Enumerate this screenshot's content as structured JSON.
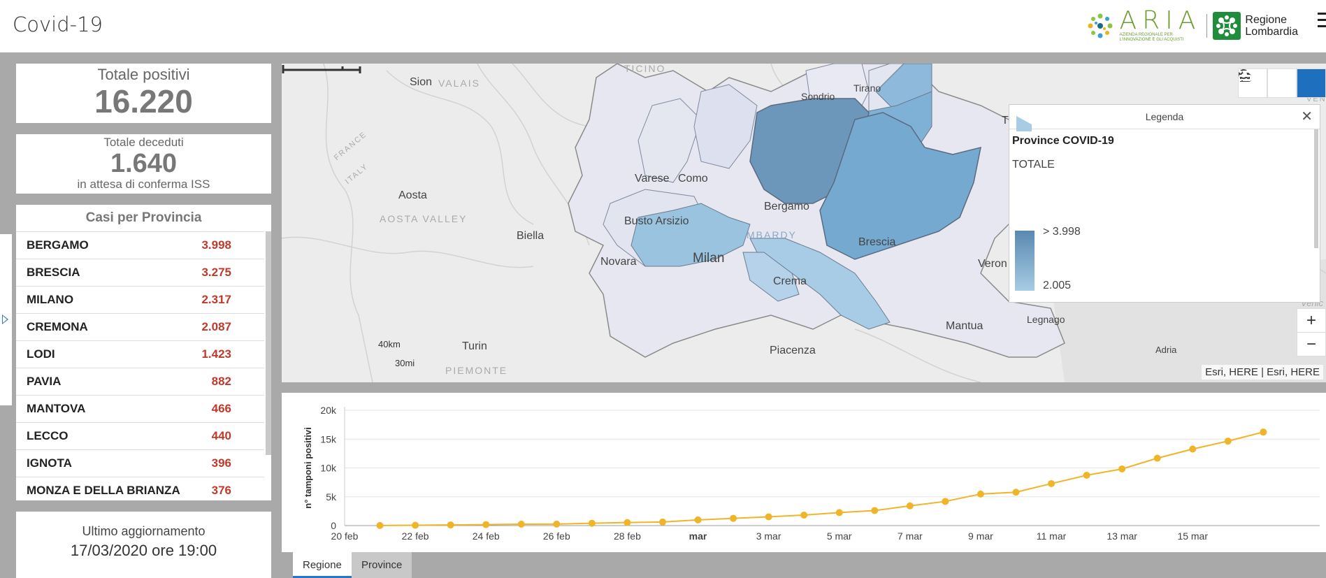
{
  "header": {
    "title": "Covid-19",
    "aria_word": "ARIA",
    "aria_subtitle": "Azienda regionale per l'innovazione e gli acquisti",
    "lombardia_line1": "Regione",
    "lombardia_line2": "Lombardia"
  },
  "kpi": {
    "positivi_label": "Totale positivi",
    "positivi_value": "16.220",
    "deceduti_label": "Totale deceduti",
    "deceduti_value": "1.640",
    "deceduti_note": "in attesa di conferma ISS"
  },
  "province_list": {
    "title": "Casi per Provincia",
    "rows": [
      {
        "name": "BERGAMO",
        "value": "3.998"
      },
      {
        "name": "BRESCIA",
        "value": "3.275"
      },
      {
        "name": "MILANO",
        "value": "2.317"
      },
      {
        "name": "CREMONA",
        "value": "2.087"
      },
      {
        "name": "LODI",
        "value": "1.423"
      },
      {
        "name": "PAVIA",
        "value": "882"
      },
      {
        "name": "MANTOVA",
        "value": "466"
      },
      {
        "name": "LECCO",
        "value": "440"
      },
      {
        "name": "IGNOTA",
        "value": "396"
      },
      {
        "name": "MONZA E DELLA BRIANZA",
        "value": "376"
      }
    ]
  },
  "update": {
    "label": "Ultimo aggiornamento",
    "value": "17/03/2020 ore 19:00"
  },
  "map": {
    "labels": {
      "ticino": "TICINO",
      "sion": "Sion",
      "valais": "VALAIS",
      "sondrio": "Sondrio",
      "tirano": "Tirano",
      "france": "FRANCE",
      "italy": "ITALY",
      "aosta": "Aosta",
      "aosta_valley": "AOSTA VALLEY",
      "varese": "Varese",
      "como": "Como",
      "bergamo": "Bergamo",
      "biella": "Biella",
      "busto": "Busto Arsizio",
      "lombardy": "MBARDY",
      "brescia": "Brescia",
      "novara": "Novara",
      "milan": "Milan",
      "crema": "Crema",
      "verona": "Veron",
      "mantua": "Mantua",
      "legnago": "Legnago",
      "turin": "Turin",
      "piacenza": "Piacenza",
      "adria": "Adria",
      "piemonte": "PIEMONTE",
      "t": "T",
      "venice": "Venic",
      "veneto": "VENE"
    },
    "scale_km": "40km",
    "scale_mi": "30mi",
    "attribution": "Esri, HERE | Esri, HERE",
    "legend": {
      "header": "Legenda",
      "layer": "Province COVID-19",
      "field": "TOTALE",
      "high": "> 3.998",
      "low": "2.005"
    },
    "tools": [
      "search-icon",
      "home-icon",
      "legend-list-icon"
    ],
    "zoom_in": "+",
    "zoom_out": "−"
  },
  "chart_data": {
    "type": "line",
    "ylabel": "n° tamponi positivi",
    "ylim": [
      0,
      20000
    ],
    "y_ticks": [
      "0",
      "5k",
      "10k",
      "15k",
      "20k"
    ],
    "x_tick_labels": [
      "20 feb",
      "22 feb",
      "24 feb",
      "26 feb",
      "28 feb",
      "mar",
      "3 mar",
      "5 mar",
      "7 mar",
      "9 mar",
      "11 mar",
      "13 mar",
      "15 mar"
    ],
    "x": [
      "2020-02-21",
      "2020-02-22",
      "2020-02-23",
      "2020-02-24",
      "2020-02-25",
      "2020-02-26",
      "2020-02-27",
      "2020-02-28",
      "2020-02-29",
      "2020-03-01",
      "2020-03-02",
      "2020-03-03",
      "2020-03-04",
      "2020-03-05",
      "2020-03-06",
      "2020-03-07",
      "2020-03-08",
      "2020-03-09",
      "2020-03-10",
      "2020-03-11",
      "2020-03-12",
      "2020-03-13",
      "2020-03-14",
      "2020-03-15",
      "2020-03-16",
      "2020-03-17"
    ],
    "values": [
      15,
      54,
      110,
      172,
      240,
      258,
      403,
      531,
      615,
      984,
      1254,
      1520,
      1820,
      2251,
      2612,
      3420,
      4189,
      5469,
      5791,
      7280,
      8725,
      9820,
      11685,
      13272,
      14649,
      16220
    ],
    "color": "#f0b429"
  },
  "tabs": [
    {
      "label": "Regione",
      "active": true
    },
    {
      "label": "Province",
      "active": false
    }
  ]
}
